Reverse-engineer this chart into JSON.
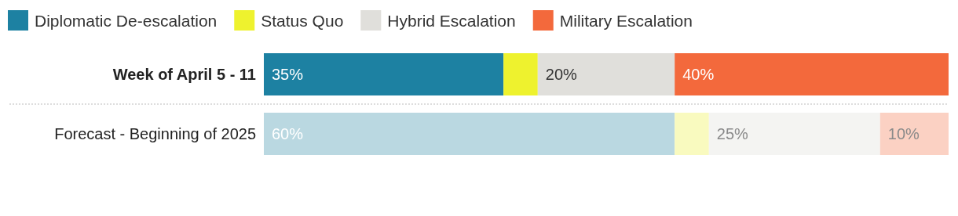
{
  "chart_data": {
    "type": "bar",
    "orientation": "horizontal",
    "stacked": true,
    "categories": [
      "Week of April 5 - 11",
      "Forecast - Beginning of 2025"
    ],
    "series": [
      {
        "name": "Diplomatic De-escalation",
        "color": "#1d81a2",
        "colors": [
          "#1d81a2",
          "#bad8e1"
        ],
        "values": [
          35,
          60
        ],
        "value_labels": [
          "35%",
          "60%"
        ]
      },
      {
        "name": "Status Quo",
        "color": "#eef22e",
        "colors": [
          "#eef22e",
          "#f9fabf"
        ],
        "values": [
          5,
          5
        ],
        "value_labels": [
          null,
          null
        ]
      },
      {
        "name": "Hybrid Escalation",
        "color": "#e0dfdb",
        "colors": [
          "#e0dfdb",
          "#f4f4f2"
        ],
        "values": [
          20,
          25
        ],
        "value_labels": [
          "20%",
          "25%"
        ]
      },
      {
        "name": "Military Escalation",
        "color": "#f3693c",
        "colors": [
          "#f3693c",
          "#fbd1c3"
        ],
        "values": [
          40,
          10
        ],
        "value_labels": [
          "40%",
          "10%"
        ]
      }
    ],
    "xlim": [
      0,
      100
    ],
    "tick_labels": "y",
    "legend": "top",
    "grid": false
  }
}
